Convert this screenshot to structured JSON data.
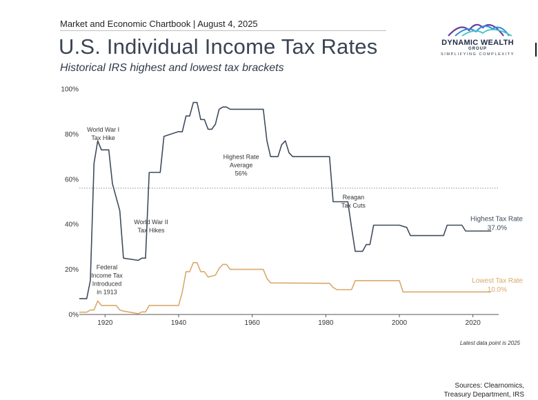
{
  "header": {
    "chartbook": "Market and Economic Chartbook | August 4, 2025"
  },
  "logo": {
    "name": "DYNAMIC WEALTH",
    "group": "GROUP",
    "tagline": "SIMPLIFYING COMPLEXITY",
    "colors": [
      "#6a3fa0",
      "#2b8fd6",
      "#3fc3c9"
    ]
  },
  "chart_data": {
    "type": "line",
    "title": "U.S. Individual Income Tax Rates",
    "subtitle": "Historical IRS highest and lowest tax brackets",
    "xlabel": "",
    "ylabel": "",
    "xlim": [
      1913,
      2027
    ],
    "ylim": [
      0,
      100
    ],
    "x_ticks": [
      1920,
      1940,
      1960,
      1980,
      2000,
      2020
    ],
    "y_ticks": [
      0,
      20,
      40,
      60,
      80,
      100
    ],
    "y_tick_labels": [
      "0%",
      "20%",
      "40%",
      "60%",
      "80%",
      "100%"
    ],
    "grid": false,
    "series": [
      {
        "name": "Highest Tax Rate",
        "color": "#3e4a5c",
        "points": [
          [
            1913,
            7
          ],
          [
            1915,
            7
          ],
          [
            1916,
            15
          ],
          [
            1917,
            67
          ],
          [
            1918,
            77
          ],
          [
            1919,
            73
          ],
          [
            1921,
            73
          ],
          [
            1922,
            58
          ],
          [
            1924,
            46
          ],
          [
            1925,
            25
          ],
          [
            1929,
            24
          ],
          [
            1930,
            25
          ],
          [
            1931,
            25
          ],
          [
            1932,
            63
          ],
          [
            1935,
            63
          ],
          [
            1936,
            79
          ],
          [
            1940,
            81.1
          ],
          [
            1941,
            81
          ],
          [
            1942,
            88
          ],
          [
            1943,
            88
          ],
          [
            1944,
            94
          ],
          [
            1945,
            94
          ],
          [
            1946,
            86.45
          ],
          [
            1947,
            86.45
          ],
          [
            1948,
            82.13
          ],
          [
            1949,
            82.13
          ],
          [
            1950,
            84.36
          ],
          [
            1951,
            91
          ],
          [
            1952,
            92
          ],
          [
            1953,
            92
          ],
          [
            1954,
            91
          ],
          [
            1963,
            91
          ],
          [
            1964,
            77
          ],
          [
            1965,
            70
          ],
          [
            1967,
            70
          ],
          [
            1968,
            75.25
          ],
          [
            1969,
            77
          ],
          [
            1970,
            71.75
          ],
          [
            1971,
            70
          ],
          [
            1981,
            70
          ],
          [
            1982,
            50
          ],
          [
            1986,
            50
          ],
          [
            1987,
            38.5
          ],
          [
            1988,
            28
          ],
          [
            1990,
            28
          ],
          [
            1991,
            31
          ],
          [
            1992,
            31
          ],
          [
            1993,
            39.6
          ],
          [
            2000,
            39.6
          ],
          [
            2001,
            39.1
          ],
          [
            2002,
            38.6
          ],
          [
            2003,
            35
          ],
          [
            2012,
            35
          ],
          [
            2013,
            39.6
          ],
          [
            2017,
            39.6
          ],
          [
            2018,
            37
          ],
          [
            2025,
            37
          ]
        ]
      },
      {
        "name": "Lowest Tax Rate",
        "color": "#d9a86a",
        "points": [
          [
            1913,
            1
          ],
          [
            1915,
            1
          ],
          [
            1916,
            2
          ],
          [
            1917,
            2
          ],
          [
            1918,
            6
          ],
          [
            1919,
            4
          ],
          [
            1923,
            4
          ],
          [
            1924,
            2
          ],
          [
            1925,
            1.5
          ],
          [
            1929,
            0.375
          ],
          [
            1930,
            1.125
          ],
          [
            1931,
            1.125
          ],
          [
            1932,
            4
          ],
          [
            1940,
            4
          ],
          [
            1941,
            10
          ],
          [
            1942,
            19
          ],
          [
            1943,
            19
          ],
          [
            1944,
            23
          ],
          [
            1945,
            23
          ],
          [
            1946,
            19
          ],
          [
            1947,
            19
          ],
          [
            1948,
            16.6
          ],
          [
            1950,
            17.4
          ],
          [
            1951,
            20.4
          ],
          [
            1952,
            22.2
          ],
          [
            1953,
            22.2
          ],
          [
            1954,
            20
          ],
          [
            1963,
            20
          ],
          [
            1964,
            16
          ],
          [
            1965,
            14
          ],
          [
            1981,
            13.825
          ],
          [
            1982,
            12
          ],
          [
            1983,
            11
          ],
          [
            1987,
            11
          ],
          [
            1988,
            15
          ],
          [
            2000,
            15
          ],
          [
            2001,
            10
          ],
          [
            2025,
            10
          ]
        ]
      }
    ],
    "annotations": [
      {
        "id": "ww1",
        "lines": [
          "World War I",
          "Tax Hike"
        ],
        "x": 1919.5,
        "y": 81
      },
      {
        "id": "ww2",
        "lines": [
          "World War II",
          "Tax Hikes"
        ],
        "x": 1932.5,
        "y": 40
      },
      {
        "id": "federal",
        "lines": [
          "Federal",
          "Income Tax",
          "Introduced",
          "in 1913"
        ],
        "x": 1920.5,
        "y": 20
      },
      {
        "id": "average",
        "lines": [
          "Highest Rate",
          "Average",
          "56%"
        ],
        "x": 1957,
        "y": 69
      },
      {
        "id": "reagan",
        "lines": [
          "Reagan",
          "Tax Cuts"
        ],
        "x": 1987.5,
        "y": 51
      }
    ],
    "average_line": {
      "value": 56,
      "style": "dotted"
    },
    "end_labels": [
      {
        "series": "Highest Tax Rate",
        "label": "Highest Tax Rate",
        "value": "37.0%",
        "y": 41.5
      },
      {
        "series": "Lowest Tax Rate",
        "label": "Lowest Tax Rate",
        "value": "10.0%",
        "y": 14
      }
    ]
  },
  "footnote": "Latest data point is 2025",
  "sources": "Sources: Clearnomics,\nTreasury Department, IRS"
}
